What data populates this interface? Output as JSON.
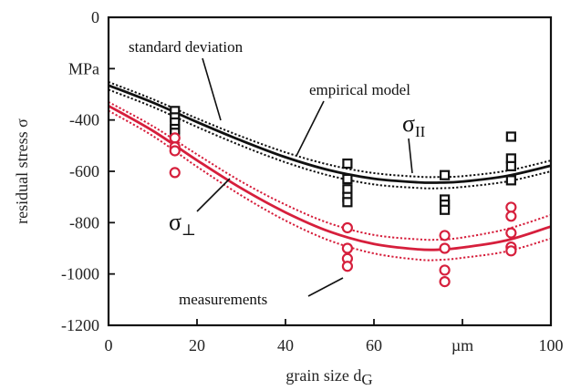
{
  "chart_data": {
    "type": "scatter",
    "xlabel": "grain size d",
    "xlabel_sub": "G",
    "ylabel": "residual stress σ",
    "y_unit": "MPa",
    "x_unit": "µm",
    "xlim": [
      0,
      100
    ],
    "ylim": [
      -1200,
      0
    ],
    "x_ticks": [
      {
        "value": 0,
        "label": "0"
      },
      {
        "value": 20,
        "label": "20"
      },
      {
        "value": 40,
        "label": "40"
      },
      {
        "value": 60,
        "label": "60"
      },
      {
        "value": 80,
        "label": "µm"
      },
      {
        "value": 100,
        "label": "100"
      }
    ],
    "y_ticks": [
      {
        "value": 0,
        "label": "0"
      },
      {
        "value": -200,
        "label": "MPa"
      },
      {
        "value": -400,
        "label": "-400"
      },
      {
        "value": -600,
        "label": "-600"
      },
      {
        "value": -800,
        "label": "-800"
      },
      {
        "value": -1000,
        "label": "-1000"
      },
      {
        "value": -1200,
        "label": "-1200"
      }
    ],
    "grid": false,
    "series": [
      {
        "name": "σ∥",
        "marker": "square",
        "color": "#111111",
        "measurements": {
          "x": [
            15,
            15,
            15,
            15,
            15,
            54,
            54,
            54,
            54,
            54,
            76,
            76,
            76,
            76,
            91,
            91,
            91,
            91
          ],
          "y": [
            -365,
            -390,
            -410,
            -435,
            -450,
            -570,
            -630,
            -670,
            -700,
            -720,
            -615,
            -710,
            -730,
            -750,
            -465,
            -550,
            -580,
            -635
          ]
        },
        "empirical_model": {
          "x": [
            0,
            10,
            20,
            30,
            40,
            50,
            60,
            70,
            75,
            80,
            90,
            100
          ],
          "y": [
            -265,
            -332,
            -408,
            -480,
            -545,
            -596,
            -629,
            -643,
            -644,
            -640,
            -618,
            -578
          ]
        },
        "std_dev_upper": {
          "x": [
            0,
            10,
            20,
            30,
            40,
            50,
            60,
            70,
            75,
            80,
            90,
            100
          ],
          "y": [
            -252,
            -319,
            -394,
            -464,
            -526,
            -575,
            -607,
            -621,
            -622,
            -619,
            -598,
            -558
          ]
        },
        "std_dev_lower": {
          "x": [
            0,
            10,
            20,
            30,
            40,
            50,
            60,
            70,
            75,
            80,
            90,
            100
          ],
          "y": [
            -282,
            -349,
            -427,
            -500,
            -565,
            -617,
            -651,
            -665,
            -666,
            -661,
            -640,
            -600
          ]
        }
      },
      {
        "name": "σ⊥",
        "marker": "circle",
        "color": "#d61f3c",
        "measurements": {
          "x": [
            15,
            15,
            15,
            15,
            54,
            54,
            54,
            54,
            76,
            76,
            76,
            76,
            91,
            91,
            91,
            91,
            91
          ],
          "y": [
            -470,
            -505,
            -520,
            -605,
            -820,
            -900,
            -940,
            -970,
            -850,
            -900,
            -985,
            -1030,
            -740,
            -775,
            -840,
            -895,
            -910
          ]
        },
        "empirical_model": {
          "x": [
            0,
            10,
            20,
            30,
            40,
            50,
            60,
            70,
            75,
            80,
            90,
            100
          ],
          "y": [
            -345,
            -442,
            -557,
            -666,
            -760,
            -835,
            -883,
            -904,
            -905,
            -897,
            -869,
            -815
          ]
        },
        "std_dev_upper": {
          "x": [
            0,
            10,
            20,
            30,
            40,
            50,
            60,
            70,
            75,
            80,
            90,
            100
          ],
          "y": [
            -330,
            -424,
            -534,
            -640,
            -730,
            -803,
            -848,
            -865,
            -866,
            -858,
            -825,
            -770
          ]
        },
        "std_dev_lower": {
          "x": [
            0,
            10,
            20,
            30,
            40,
            50,
            60,
            70,
            75,
            80,
            90,
            100
          ],
          "y": [
            -364,
            -462,
            -582,
            -694,
            -792,
            -870,
            -920,
            -944,
            -945,
            -937,
            -912,
            -862
          ]
        }
      }
    ],
    "annotations": {
      "std_dev": "standard deviation",
      "empirical": "empirical model",
      "measurements": "measurements",
      "sigma_parallel": "σ",
      "sigma_parallel_sub": "II",
      "sigma_perp": "σ",
      "sigma_perp_sub": "⊥"
    }
  }
}
